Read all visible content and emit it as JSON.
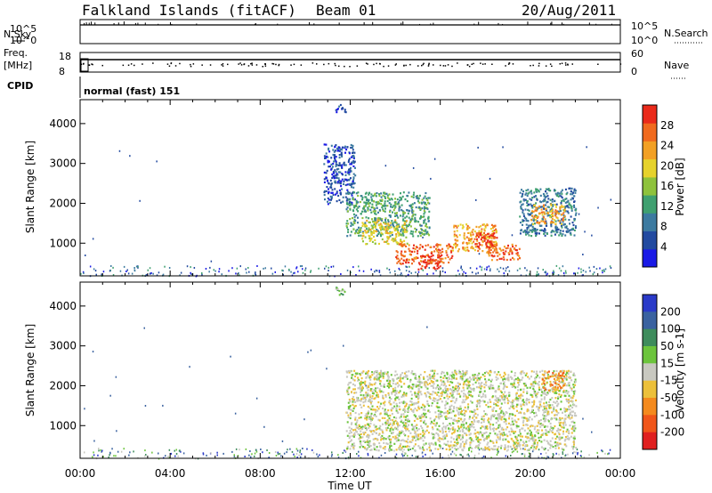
{
  "header": {
    "station": "Falkland Islands (fitACF)",
    "beam": "Beam 01",
    "date": "20/Aug/2011"
  },
  "status_panels": {
    "nsky_label": "N.Sky",
    "nsky_ticks": [
      "10^5",
      "10^0"
    ],
    "nsearch_label": "N.Search",
    "nsearch_ticks": [
      "10^5",
      "10^0"
    ],
    "freq_label": "Freq.",
    "freq_unit": "[MHz]",
    "freq_ticks": [
      "18",
      "8"
    ],
    "nave_label": "Nave",
    "nave_ticks": [
      "60",
      "0"
    ],
    "cpid_label": "CPID",
    "cpid_value": "normal (fast) 151"
  },
  "colors": {
    "power_scale": [
      "#1a1ae6",
      "#224aa0",
      "#3c7aa0",
      "#3fa070",
      "#8ec23c",
      "#e6d22c",
      "#f2a024",
      "#f06a1e",
      "#ea2a1a"
    ],
    "velocity_scale": [
      "#2a3ac8",
      "#3a62a0",
      "#3e8c5c",
      "#6cc43c",
      "#c8c8c0",
      "#ecc03a",
      "#f48a1e",
      "#f0561a",
      "#e02020"
    ],
    "ground_scatter": "#c8c8c0"
  },
  "chart_data": [
    {
      "type": "heatmap",
      "name": "power",
      "ylabel": "Slant Range [km]",
      "xlabel": "",
      "x_ticks": [
        "00:00",
        "04:00",
        "08:00",
        "12:00",
        "16:00",
        "20:00",
        "00:00"
      ],
      "x_range_hours": [
        0,
        24
      ],
      "y_ticks": [
        1000,
        2000,
        3000,
        4000
      ],
      "ylim": [
        180,
        4600
      ],
      "colorbar_label": "Power [dB]",
      "colorbar_ticks": [
        4,
        8,
        12,
        16,
        20,
        24,
        28
      ],
      "colorbar_range": [
        0,
        32
      ],
      "regions": [
        {
          "t": [
            11.3,
            11.8
          ],
          "r": [
            4300,
            4500
          ],
          "level": 1
        },
        {
          "t": [
            10.8,
            12.2
          ],
          "r": [
            2000,
            3500
          ],
          "level": 1
        },
        {
          "t": [
            11.8,
            15.5
          ],
          "r": [
            1200,
            2300
          ],
          "level": 3
        },
        {
          "t": [
            12.5,
            14.5
          ],
          "r": [
            1000,
            1600
          ],
          "level": 5
        },
        {
          "t": [
            14.0,
            16.5
          ],
          "r": [
            500,
            1000
          ],
          "level": 7
        },
        {
          "t": [
            15.0,
            16.0
          ],
          "r": [
            350,
            700
          ],
          "level": 8
        },
        {
          "t": [
            16.5,
            18.5
          ],
          "r": [
            800,
            1500
          ],
          "level": 6
        },
        {
          "t": [
            17.5,
            18.5
          ],
          "r": [
            900,
            1300
          ],
          "level": 8
        },
        {
          "t": [
            18.0,
            19.5
          ],
          "r": [
            600,
            1000
          ],
          "level": 7
        },
        {
          "t": [
            19.5,
            22.0
          ],
          "r": [
            1200,
            2400
          ],
          "level": 2
        },
        {
          "t": [
            20.0,
            21.5
          ],
          "r": [
            1500,
            2000
          ],
          "level": 6
        }
      ]
    },
    {
      "type": "heatmap",
      "name": "velocity",
      "ylabel": "Slant Range [km]",
      "xlabel": "Time UT",
      "x_ticks": [
        "00:00",
        "04:00",
        "08:00",
        "12:00",
        "16:00",
        "20:00",
        "00:00"
      ],
      "x_range_hours": [
        0,
        24
      ],
      "y_ticks": [
        1000,
        2000,
        3000,
        4000
      ],
      "ylim": [
        180,
        4600
      ],
      "colorbar_label": "Velocity [m s-1]",
      "colorbar_ticks": [
        "200",
        "100",
        "50",
        "15",
        "-15",
        "-50",
        "-100",
        "-200"
      ],
      "regions": [
        {
          "t": [
            11.3,
            11.8
          ],
          "r": [
            4300,
            4500
          ],
          "level": 3
        },
        {
          "t": [
            11.8,
            22.0
          ],
          "r": [
            400,
            2400
          ],
          "level": 4
        },
        {
          "t": [
            20.5,
            21.5
          ],
          "r": [
            1900,
            2400
          ],
          "level": 6
        }
      ]
    }
  ]
}
